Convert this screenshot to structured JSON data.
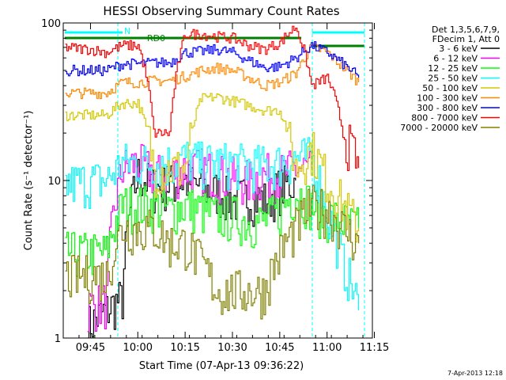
{
  "chart_data": {
    "type": "line",
    "title": "HESSI Observing Summary Count Rates",
    "xlabel": "Start Time (07-Apr-13 09:36:22)",
    "ylabel": "Count Rate (s⁻¹ detector⁻¹)",
    "yscale": "log",
    "ylim": [
      1,
      100
    ],
    "xlim_minutes_after_0936": [
      0,
      98
    ],
    "x_ticks": [
      "09:45",
      "10:00",
      "10:15",
      "10:30",
      "10:45",
      "11:00",
      "11:15"
    ],
    "y_ticks": [
      "1",
      "10",
      "100"
    ],
    "legend_header": [
      "Det 1,3,5,6,7,9,",
      "FDecim 1, Att 0"
    ],
    "legend_placement": "right",
    "grid": false,
    "annotations": {
      "night_flag": "N",
      "rd0_flag": "RD0",
      "timestamp": "7-Apr-2013 12:18"
    },
    "series": [
      {
        "name": "3 - 6 keV",
        "color": "#000000",
        "x": [
          "09:44",
          "09:50",
          "09:55",
          "10:00",
          "10:05",
          "10:10",
          "10:15",
          "10:20",
          "10:25",
          "10:30",
          "10:35",
          "10:40",
          "10:45",
          "10:50"
        ],
        "y": [
          1.2,
          1.5,
          1.8,
          11,
          9,
          9.5,
          10,
          9,
          8.5,
          7.5,
          8,
          7.5,
          9,
          10
        ]
      },
      {
        "name": "6 - 12 keV",
        "color": "#ff00ff",
        "x": [
          "09:44",
          "09:50",
          "09:55",
          "10:00",
          "10:05",
          "10:10",
          "10:15",
          "10:20",
          "10:25",
          "10:30",
          "10:35",
          "10:40",
          "10:45",
          "10:50",
          "10:55"
        ],
        "y": [
          1.6,
          1.7,
          12,
          13,
          11,
          11,
          12,
          12,
          11,
          10.5,
          10,
          11,
          11,
          12,
          12
        ]
      },
      {
        "name": "12 - 25 keV",
        "color": "#00ff00",
        "x": [
          "09:37",
          "09:45",
          "09:50",
          "09:55",
          "10:00",
          "10:05",
          "10:10",
          "10:15",
          "10:20",
          "10:25",
          "10:30",
          "10:35",
          "10:40",
          "10:45",
          "10:50",
          "10:55",
          "11:00",
          "11:05",
          "11:10"
        ],
        "y": [
          3.5,
          3.5,
          3.5,
          7,
          7,
          7,
          6.5,
          7,
          6.5,
          6,
          6,
          5.5,
          5.5,
          6.5,
          8.5,
          7,
          6,
          5.5,
          5
        ]
      },
      {
        "name": "25 - 50 keV",
        "color": "#00ffff",
        "x": [
          "09:37",
          "09:45",
          "09:50",
          "09:55",
          "10:00",
          "10:05",
          "10:10",
          "10:15",
          "10:20",
          "10:25",
          "10:30",
          "10:35",
          "10:40",
          "10:45",
          "10:50",
          "10:55",
          "11:00",
          "11:05",
          "11:10"
        ],
        "y": [
          9.5,
          10,
          10,
          13,
          13,
          13,
          13,
          14,
          13,
          13,
          13,
          12.5,
          12.5,
          13,
          14,
          14,
          6,
          3,
          1.5
        ]
      },
      {
        "name": "50 - 100 keV",
        "color": "#d4c800",
        "x": [
          "09:37",
          "09:45",
          "09:50",
          "09:55",
          "10:00",
          "10:05",
          "10:10",
          "10:15",
          "10:20",
          "10:25",
          "10:30",
          "10:35",
          "10:40",
          "10:45",
          "10:50",
          "10:55",
          "11:00",
          "11:05",
          "11:10"
        ],
        "y": [
          26,
          26,
          26,
          31,
          31,
          12,
          12,
          12,
          33,
          34,
          32,
          30,
          28,
          28,
          12,
          16,
          10,
          7,
          5
        ]
      },
      {
        "name": "100 - 300 keV",
        "color": "#ff8800",
        "x": [
          "09:37",
          "09:45",
          "09:50",
          "09:55",
          "10:00",
          "10:05",
          "10:10",
          "10:15",
          "10:20",
          "10:25",
          "10:30",
          "10:35",
          "10:40",
          "10:45",
          "10:50",
          "10:55",
          "11:00",
          "11:05",
          "11:10"
        ],
        "y": [
          36,
          36,
          36,
          42,
          42,
          43,
          43,
          46,
          50,
          52,
          50,
          45,
          40,
          42,
          48,
          70,
          65,
          52,
          42
        ]
      },
      {
        "name": "300 - 800 keV",
        "color": "#0000ff",
        "x": [
          "09:37",
          "09:45",
          "09:50",
          "09:55",
          "10:00",
          "10:05",
          "10:10",
          "10:15",
          "10:20",
          "10:25",
          "10:30",
          "10:35",
          "10:40",
          "10:45",
          "10:50",
          "10:55",
          "11:00",
          "11:05",
          "11:10"
        ],
        "y": [
          50,
          50,
          50,
          55,
          55,
          56,
          56,
          65,
          66,
          68,
          65,
          58,
          52,
          53,
          60,
          72,
          65,
          55,
          45
        ]
      },
      {
        "name": "800 - 7000 keV",
        "color": "#ff0000",
        "x": [
          "09:37",
          "09:45",
          "09:50",
          "09:55",
          "10:00",
          "10:05",
          "10:10",
          "10:15",
          "10:20",
          "10:25",
          "10:30",
          "10:35",
          "10:40",
          "10:45",
          "10:50",
          "10:55",
          "11:00",
          "11:05",
          "11:10"
        ],
        "y": [
          70,
          68,
          65,
          72,
          72,
          20,
          20,
          85,
          85,
          82,
          80,
          72,
          68,
          75,
          95,
          40,
          45,
          20,
          12
        ]
      },
      {
        "name": "7000 - 20000 keV",
        "color": "#808000",
        "x": [
          "09:37",
          "09:45",
          "09:50",
          "09:55",
          "10:00",
          "10:05",
          "10:10",
          "10:15",
          "10:20",
          "10:25",
          "10:30",
          "10:35",
          "10:40",
          "10:45",
          "10:50",
          "10:55",
          "11:00",
          "11:05",
          "11:10"
        ],
        "y": [
          2.5,
          2.5,
          2.5,
          5,
          5,
          5,
          4,
          4,
          3,
          2,
          2,
          2,
          2,
          3.5,
          5,
          7,
          6.5,
          5,
          4
        ]
      }
    ]
  },
  "layout_time_origin": "09:36:22"
}
